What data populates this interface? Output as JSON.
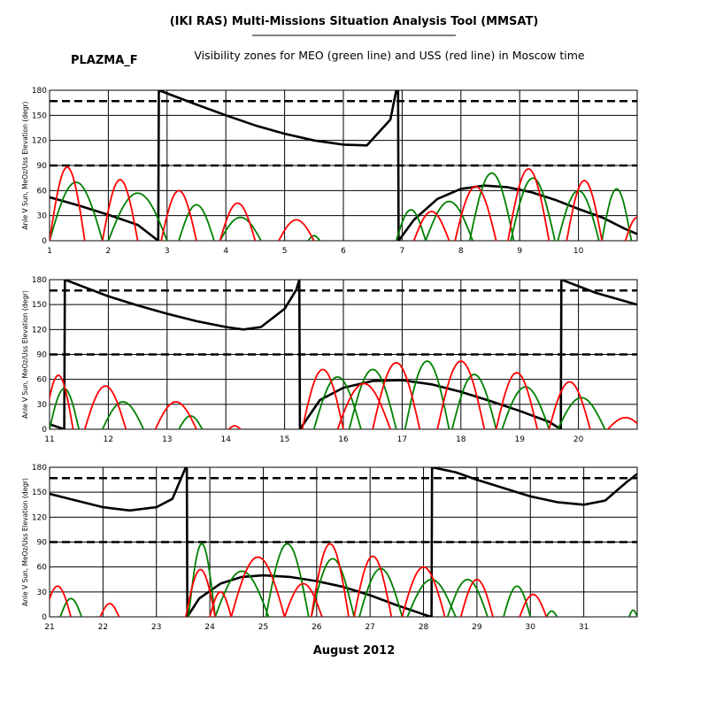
{
  "header": {
    "title": "(IKI RAS) Multi-Missions Situation Analysis Tool (MMSAT)",
    "mission": "PLAZMA_F",
    "subtitle": "Visibility zones for MEO (green line) and USS (red line) in Moscow time"
  },
  "footer": {
    "xlabel": "August 2012"
  },
  "colors": {
    "sun_angle": "#000000",
    "meo": "#008000",
    "uss": "#ff0000",
    "grid": "#000000"
  },
  "chart_data": [
    {
      "type": "line",
      "panel": 1,
      "ylabel": "Anle V Sun, MeOz/Uss Elevation (degr)",
      "xlim": [
        1,
        11
      ],
      "ylim": [
        0,
        180
      ],
      "xticks": [
        1,
        2,
        3,
        4,
        5,
        6,
        7,
        8,
        9,
        10
      ],
      "yticks": [
        0,
        30,
        60,
        90,
        120,
        150,
        180
      ],
      "hlines_dashed": [
        90,
        167
      ],
      "series": [
        {
          "key": "sun_angle",
          "points": [
            [
              1,
              52
            ],
            [
              1.5,
              42
            ],
            [
              2,
              31
            ],
            [
              2.5,
              19
            ],
            [
              2.85,
              0
            ],
            [
              2.86,
              180
            ],
            [
              3.5,
              163
            ],
            [
              4,
              150
            ],
            [
              4.5,
              138
            ],
            [
              5,
              128
            ],
            [
              5.5,
              120
            ],
            [
              6,
              115
            ],
            [
              6.4,
              114
            ],
            [
              6.8,
              145
            ],
            [
              6.9,
              180
            ],
            [
              6.93,
              180
            ],
            [
              6.94,
              0
            ],
            [
              7.2,
              25
            ],
            [
              7.6,
              50
            ],
            [
              8,
              62
            ],
            [
              8.4,
              66
            ],
            [
              8.8,
              64
            ],
            [
              9.2,
              58
            ],
            [
              9.6,
              49
            ],
            [
              10,
              38
            ],
            [
              10.4,
              28
            ],
            [
              10.8,
              14
            ],
            [
              11,
              8
            ]
          ]
        },
        {
          "key": "meo",
          "arcs": [
            [
              1,
              1.9,
              70
            ],
            [
              2,
              3.0,
              57
            ],
            [
              3.2,
              3.8,
              43
            ],
            [
              3.9,
              4.6,
              28
            ],
            [
              5.4,
              5.6,
              6
            ],
            [
              6.9,
              7.4,
              37
            ],
            [
              7.4,
              8.2,
              47
            ],
            [
              8.15,
              8.9,
              81
            ],
            [
              8.85,
              9.6,
              75
            ],
            [
              9.65,
              10.35,
              60
            ],
            [
              10.4,
              10.9,
              62
            ]
          ]
        },
        {
          "key": "uss",
          "arcs": [
            [
              1,
              1.6,
              88
            ],
            [
              1.9,
              2.5,
              73
            ],
            [
              2.9,
              3.5,
              60
            ],
            [
              3.9,
              4.5,
              45
            ],
            [
              4.9,
              5.5,
              25
            ],
            [
              7.2,
              7.8,
              35
            ],
            [
              7.9,
              8.6,
              65
            ],
            [
              8.8,
              9.5,
              86
            ],
            [
              9.8,
              10.4,
              72
            ],
            [
              10.8,
              11.2,
              28
            ]
          ]
        }
      ]
    },
    {
      "type": "line",
      "panel": 2,
      "ylabel": "Anle V Sun, MeOz/Uss Elevation (degr)",
      "xlim": [
        11,
        21
      ],
      "ylim": [
        0,
        180
      ],
      "xticks": [
        11,
        12,
        13,
        14,
        15,
        16,
        17,
        18,
        19,
        20
      ],
      "yticks": [
        0,
        30,
        60,
        90,
        120,
        150,
        180
      ],
      "hlines_dashed": [
        90,
        167
      ],
      "series": [
        {
          "key": "sun_angle",
          "points": [
            [
              11,
              6
            ],
            [
              11.25,
              0
            ],
            [
              11.26,
              180
            ],
            [
              12,
              160
            ],
            [
              12.5,
              149
            ],
            [
              13,
              139
            ],
            [
              13.5,
              130
            ],
            [
              14,
              123
            ],
            [
              14.3,
              120
            ],
            [
              14.6,
              123
            ],
            [
              15,
              145
            ],
            [
              15.2,
              168
            ],
            [
              15.25,
              180
            ],
            [
              15.26,
              0
            ],
            [
              15.6,
              35
            ],
            [
              16,
              50
            ],
            [
              16.5,
              58
            ],
            [
              17,
              59
            ],
            [
              17.5,
              54
            ],
            [
              18,
              45
            ],
            [
              18.5,
              34
            ],
            [
              19,
              22
            ],
            [
              19.5,
              9
            ],
            [
              19.7,
              0
            ],
            [
              19.71,
              180
            ],
            [
              20.3,
              164
            ],
            [
              21,
              150
            ]
          ]
        },
        {
          "key": "meo",
          "arcs": [
            [
              11,
              11.5,
              49
            ],
            [
              11.9,
              12.6,
              33
            ],
            [
              13.2,
              13.6,
              16
            ],
            [
              15.5,
              16.3,
              63
            ],
            [
              16.1,
              16.9,
              72
            ],
            [
              17.05,
              17.8,
              82
            ],
            [
              17.85,
              18.6,
              66
            ],
            [
              18.7,
              19.5,
              51
            ],
            [
              19.65,
              20.45,
              38
            ]
          ]
        },
        {
          "key": "uss",
          "arcs": [
            [
              10.9,
              11.4,
              65
            ],
            [
              11.6,
              12.3,
              52
            ],
            [
              12.8,
              13.5,
              33
            ],
            [
              14.05,
              14.25,
              4
            ],
            [
              15.3,
              16.0,
              72
            ],
            [
              15.9,
              16.8,
              55
            ],
            [
              16.5,
              17.3,
              80
            ],
            [
              17.6,
              18.4,
              82
            ],
            [
              18.6,
              19.3,
              68
            ],
            [
              19.5,
              20.2,
              57
            ],
            [
              20.5,
              21.1,
              14
            ]
          ]
        }
      ]
    },
    {
      "type": "line",
      "panel": 3,
      "ylabel": "Anle V Sun, MeOz/Uss Elevation (degr)",
      "xlim": [
        21,
        32
      ],
      "ylim": [
        0,
        180
      ],
      "xticks": [
        21,
        22,
        23,
        24,
        25,
        26,
        27,
        28,
        29,
        30,
        31
      ],
      "yticks": [
        0,
        30,
        60,
        90,
        120,
        150,
        180
      ],
      "hlines_dashed": [
        90,
        167
      ],
      "series": [
        {
          "key": "sun_angle",
          "points": [
            [
              21,
              148
            ],
            [
              21.5,
              140
            ],
            [
              22,
              132
            ],
            [
              22.5,
              128
            ],
            [
              23,
              132
            ],
            [
              23.3,
              142
            ],
            [
              23.55,
              180
            ],
            [
              23.57,
              180
            ],
            [
              23.58,
              0
            ],
            [
              23.8,
              22
            ],
            [
              24.2,
              40
            ],
            [
              24.6,
              48
            ],
            [
              25,
              50
            ],
            [
              25.5,
              48
            ],
            [
              26,
              43
            ],
            [
              26.5,
              36
            ],
            [
              27,
              26
            ],
            [
              27.5,
              14
            ],
            [
              28,
              3
            ],
            [
              28.15,
              0
            ],
            [
              28.16,
              180
            ],
            [
              28.6,
              174
            ],
            [
              29,
              165
            ],
            [
              29.5,
              155
            ],
            [
              30,
              145
            ],
            [
              30.5,
              138
            ],
            [
              31,
              135
            ],
            [
              31.4,
              140
            ],
            [
              31.8,
              162
            ],
            [
              32,
              172
            ]
          ]
        },
        {
          "key": "meo",
          "arcs": [
            [
              21.2,
              21.6,
              22
            ],
            [
              23.6,
              24.1,
              88
            ],
            [
              24.1,
              25.1,
              55
            ],
            [
              25.05,
              25.85,
              88
            ],
            [
              25.9,
              26.7,
              70
            ],
            [
              26.8,
              27.6,
              58
            ],
            [
              27.7,
              28.6,
              45
            ],
            [
              28.45,
              29.2,
              45
            ],
            [
              29.5,
              30.0,
              37
            ],
            [
              30.3,
              30.5,
              7
            ],
            [
              31.85,
              32.0,
              8
            ]
          ]
        },
        {
          "key": "uss",
          "arcs": [
            [
              20.9,
              21.4,
              37
            ],
            [
              21.95,
              22.3,
              16
            ],
            [
              23.55,
              24.1,
              57
            ],
            [
              24.0,
              24.4,
              30
            ],
            [
              24.4,
              25.4,
              72
            ],
            [
              25.4,
              26.1,
              40
            ],
            [
              25.9,
              26.6,
              88
            ],
            [
              26.7,
              27.4,
              73
            ],
            [
              27.6,
              28.4,
              60
            ],
            [
              28.7,
              29.3,
              45
            ],
            [
              29.8,
              30.3,
              27
            ]
          ]
        }
      ]
    }
  ]
}
